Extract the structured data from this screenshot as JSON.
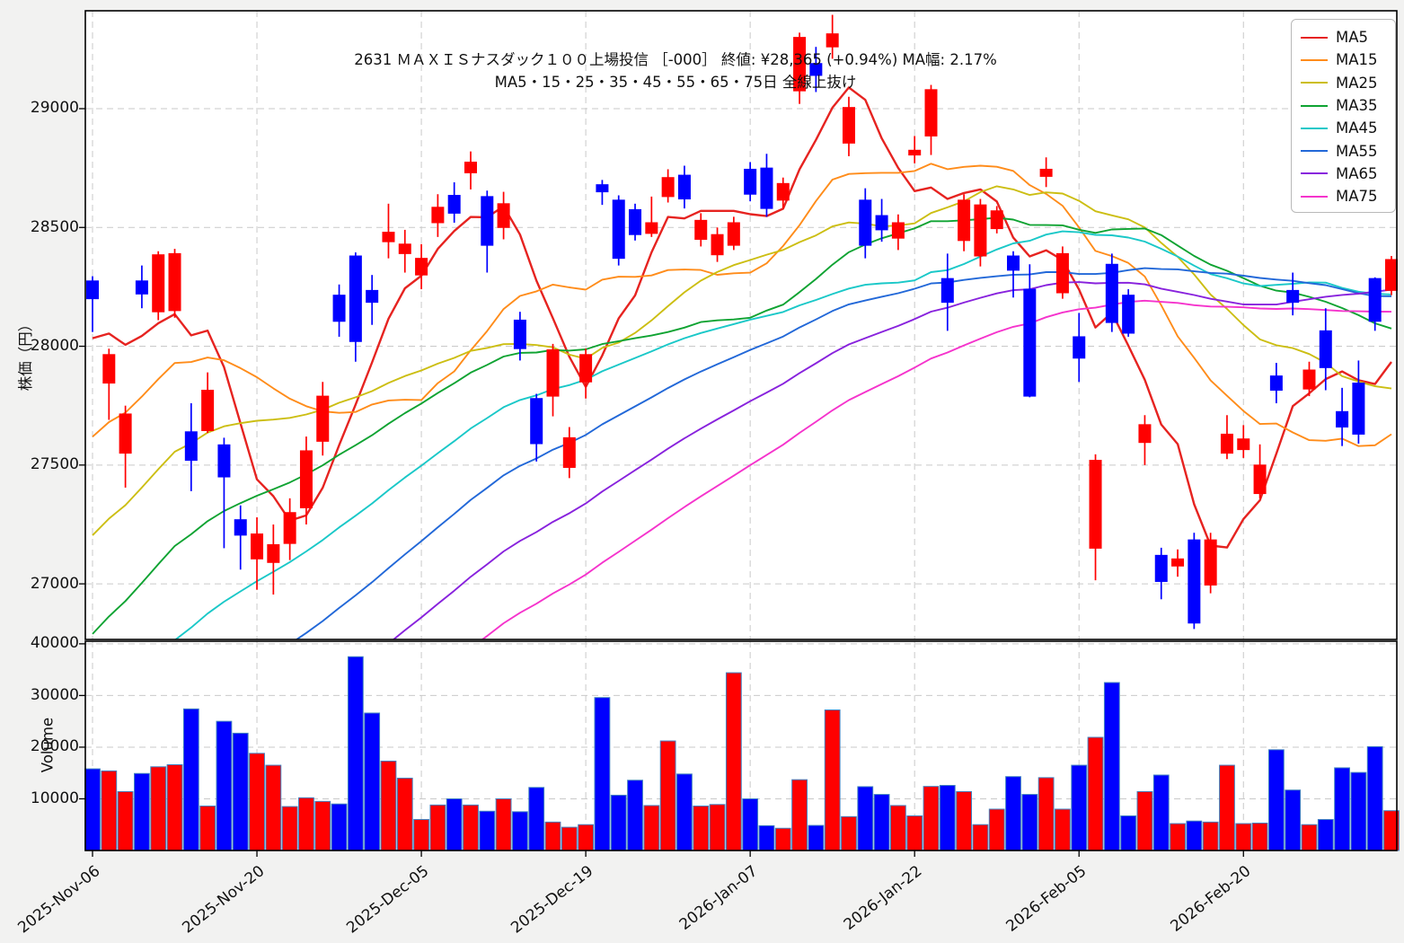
{
  "title": {
    "line1": "2631 ＭＡＸＩＳナスダック１００上場投信 ［-000］ 終値: ¥28,365 (+0.94%)  MA幅: 2.17%",
    "line2": "MA5・15・25・35・45・55・65・75日 全線上抜け"
  },
  "price_axis": {
    "label": "株価（円）",
    "ticks": [
      29000,
      28500,
      28000,
      27500,
      27000
    ],
    "ylim": [
      26766,
      29412
    ]
  },
  "volume_axis": {
    "label": "Volume",
    "ticks": [
      10000,
      20000,
      30000,
      40000
    ],
    "ylim": [
      0,
      40500
    ]
  },
  "x_axis": {
    "tick_days": [
      0,
      10,
      20,
      30,
      40,
      50,
      60,
      70
    ],
    "tick_labels": [
      "2025-Nov-06",
      "2025-Nov-20",
      "2025-Dec-05",
      "2025-Dec-19",
      "2026-Jan-07",
      "2026-Jan-22",
      "2026-Feb-05",
      "2026-Feb-20"
    ]
  },
  "legend": [
    {
      "label": "MA5",
      "color": "#e62320"
    },
    {
      "label": "MA15",
      "color": "#ff8c1a"
    },
    {
      "label": "MA25",
      "color": "#ccbe12"
    },
    {
      "label": "MA35",
      "color": "#0fa332"
    },
    {
      "label": "MA45",
      "color": "#1ac8c8"
    },
    {
      "label": "MA55",
      "color": "#2268d8"
    },
    {
      "label": "MA65",
      "color": "#8822dd"
    },
    {
      "label": "MA75",
      "color": "#f533cc"
    }
  ],
  "style": {
    "up_color": "#ff0000",
    "down_color": "#0000ff",
    "volume_edge": "#4080c0",
    "grid_color": "#c9c9c9",
    "panel_border": "#000000"
  },
  "chart_data": {
    "type": "candlestick_volume",
    "symbol": "2631",
    "last_close": 28365,
    "change_pct": 0.94,
    "ma_width_pct": 2.17,
    "dates": [
      "2025-11-06",
      "2025-11-07",
      "2025-11-10",
      "2025-11-11",
      "2025-11-12",
      "2025-11-13",
      "2025-11-14",
      "2025-11-17",
      "2025-11-18",
      "2025-11-19",
      "2025-11-20",
      "2025-11-21",
      "2025-11-25",
      "2025-11-26",
      "2025-11-27",
      "2025-11-28",
      "2025-12-01",
      "2025-12-02",
      "2025-12-03",
      "2025-12-04",
      "2025-12-05",
      "2025-12-08",
      "2025-12-09",
      "2025-12-10",
      "2025-12-11",
      "2025-12-12",
      "2025-12-15",
      "2025-12-16",
      "2025-12-17",
      "2025-12-18",
      "2025-12-19",
      "2025-12-22",
      "2025-12-23",
      "2025-12-24",
      "2025-12-25",
      "2025-12-26",
      "2025-12-29",
      "2025-12-30",
      "2026-01-05",
      "2026-01-06",
      "2026-01-07",
      "2026-01-08",
      "2026-01-09",
      "2026-01-13",
      "2026-01-14",
      "2026-01-15",
      "2026-01-16",
      "2026-01-19",
      "2026-01-20",
      "2026-01-21",
      "2026-01-22",
      "2026-01-23",
      "2026-01-26",
      "2026-01-27",
      "2026-01-28",
      "2026-01-29",
      "2026-01-30",
      "2026-02-02",
      "2026-02-03",
      "2026-02-04",
      "2026-02-05",
      "2026-02-06",
      "2026-02-09",
      "2026-02-10",
      "2026-02-12",
      "2026-02-13",
      "2026-02-16",
      "2026-02-17",
      "2026-02-18",
      "2026-02-19",
      "2026-02-20",
      "2026-02-24",
      "2026-02-25",
      "2026-02-26",
      "2026-02-27",
      "2026-03-02",
      "2026-03-03",
      "2026-03-04",
      "2026-03-05",
      "2026-03-06"
    ],
    "open": [
      28275,
      27845,
      27550,
      28275,
      28145,
      28150,
      27640,
      27645,
      27585,
      27270,
      27105,
      27090,
      27170,
      27320,
      27600,
      28215,
      28380,
      28235,
      28440,
      28390,
      28300,
      28520,
      28635,
      28730,
      28630,
      28500,
      28110,
      27780,
      27790,
      27490,
      27850,
      28680,
      28615,
      28575,
      28475,
      28630,
      28720,
      28450,
      28385,
      28425,
      28745,
      28750,
      28615,
      29075,
      29190,
      29260,
      28855,
      28615,
      28550,
      28455,
      28805,
      28885,
      28285,
      28445,
      28380,
      28495,
      28380,
      28240,
      28715,
      28225,
      28040,
      27150,
      28345,
      28215,
      27595,
      27120,
      27075,
      27185,
      26995,
      27550,
      27565,
      27380,
      27875,
      28235,
      27820,
      28065,
      27725,
      27845,
      28285,
      28235
    ],
    "high": [
      28295,
      27990,
      27750,
      28340,
      28400,
      28410,
      27760,
      27890,
      27615,
      27330,
      27280,
      27250,
      27360,
      27620,
      27850,
      28260,
      28395,
      28300,
      28600,
      28490,
      28430,
      28640,
      28690,
      28820,
      28655,
      28650,
      28145,
      27800,
      28010,
      27660,
      27990,
      28700,
      28635,
      28600,
      28630,
      28745,
      28760,
      28560,
      28500,
      28545,
      28775,
      28810,
      28710,
      29320,
      29260,
      29395,
      29050,
      28665,
      28620,
      28555,
      28885,
      29100,
      28390,
      28640,
      28620,
      28590,
      28400,
      28345,
      28795,
      28420,
      28140,
      27545,
      28390,
      28240,
      27710,
      27152,
      27145,
      27215,
      27215,
      27710,
      27668,
      27587,
      27930,
      28310,
      27935,
      28160,
      27825,
      27940,
      28290,
      28380
    ],
    "low": [
      28060,
      27690,
      27405,
      28160,
      28110,
      28120,
      27390,
      27635,
      27150,
      27060,
      26975,
      26955,
      27100,
      27250,
      27540,
      28040,
      27935,
      28090,
      28370,
      28310,
      28240,
      28460,
      28520,
      28660,
      28310,
      28450,
      27940,
      27515,
      27705,
      27445,
      27780,
      28595,
      28340,
      28445,
      28460,
      28605,
      28580,
      28420,
      28355,
      28405,
      28610,
      28545,
      28580,
      29020,
      29070,
      29210,
      28800,
      28370,
      28440,
      28405,
      28770,
      28805,
      28065,
      28400,
      28336,
      28475,
      28205,
      27785,
      28670,
      28200,
      27850,
      27015,
      28060,
      28040,
      27500,
      26935,
      27030,
      26810,
      26960,
      27525,
      27530,
      27360,
      27760,
      28130,
      27790,
      27815,
      27580,
      27590,
      28065,
      28215
    ],
    "close": [
      28200,
      27965,
      27715,
      28220,
      28385,
      28390,
      27520,
      27815,
      27450,
      27205,
      27210,
      27165,
      27300,
      27560,
      27790,
      28105,
      28020,
      28185,
      28480,
      28430,
      28370,
      28585,
      28560,
      28775,
      28425,
      28600,
      27990,
      27590,
      27985,
      27615,
      27965,
      28650,
      28370,
      28470,
      28520,
      28710,
      28620,
      28530,
      28470,
      28520,
      28640,
      28580,
      28685,
      29300,
      29140,
      29315,
      29005,
      28425,
      28490,
      28520,
      28825,
      29080,
      28185,
      28615,
      28595,
      28570,
      28320,
      27790,
      28745,
      28390,
      27950,
      27520,
      28100,
      28055,
      27670,
      27010,
      27105,
      26835,
      27185,
      27630,
      27610,
      27500,
      27815,
      28185,
      27900,
      27910,
      27660,
      27630,
      28105,
      28365
    ],
    "volume": [
      15800,
      15400,
      11400,
      14900,
      16200,
      16600,
      27400,
      8600,
      25000,
      22700,
      18800,
      16500,
      8500,
      10200,
      9500,
      9000,
      37500,
      26600,
      17300,
      14000,
      6000,
      8800,
      10000,
      8800,
      7600,
      10000,
      7500,
      12200,
      5500,
      4500,
      5000,
      29600,
      10700,
      13600,
      8700,
      21200,
      14800,
      8600,
      8900,
      34400,
      10000,
      4800,
      4300,
      13700,
      4850,
      27200,
      6550,
      12350,
      10850,
      8700,
      6700,
      12400,
      12600,
      11400,
      5000,
      8000,
      14300,
      10850,
      14100,
      8000,
      16500,
      21900,
      32500,
      6700,
      11400,
      14600,
      5200,
      5700,
      5500,
      16500,
      5200,
      5300,
      19500,
      11700,
      5000,
      6000,
      16000,
      15100,
      20100,
      7700
    ],
    "ma_periods": [
      5,
      15,
      25,
      35,
      45,
      55,
      65,
      75
    ],
    "ma_prehistory": {
      "days": 74,
      "anchor": 28200,
      "recent_slope": 83,
      "recent_span": 35,
      "old_base": 25295,
      "old_slope": 45
    }
  }
}
